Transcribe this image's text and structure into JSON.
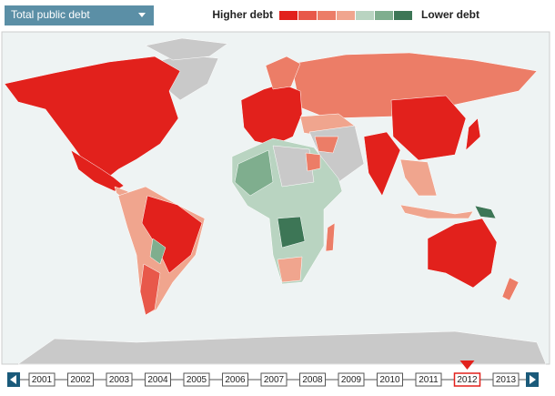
{
  "header": {
    "dropdown": "Total public debt"
  },
  "legend": {
    "high_label": "Higher debt",
    "low_label": "Lower debt",
    "colors": [
      "#e2211c",
      "#e8584a",
      "#ec7d67",
      "#f0a58e",
      "#b9d4c1",
      "#7fae8e",
      "#3d7656"
    ]
  },
  "timeline": {
    "years": [
      "2001",
      "2002",
      "2003",
      "2004",
      "2005",
      "2006",
      "2007",
      "2008",
      "2009",
      "2010",
      "2011",
      "2012",
      "2013"
    ],
    "selected": "2012"
  }
}
